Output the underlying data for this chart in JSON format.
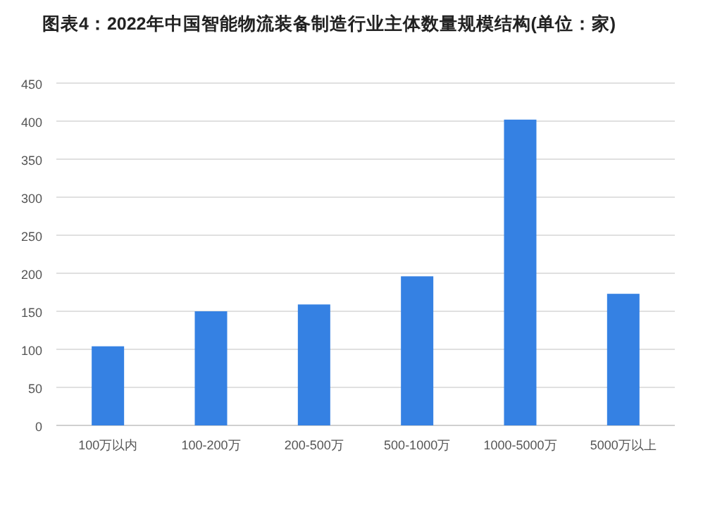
{
  "chart_data": {
    "type": "bar",
    "title": "图表4：2022年中国智能物流装备制造行业主体数量规模结构(单位：家)",
    "categories": [
      "100万以内",
      "100-200万",
      "200-500万",
      "500-1000万",
      "1000-5000万",
      "5000万以上"
    ],
    "values": [
      104,
      150,
      159,
      196,
      402,
      173
    ],
    "color": "#3581e3",
    "ylim": [
      0,
      450
    ],
    "yticks": [
      0,
      50,
      100,
      150,
      200,
      250,
      300,
      350,
      400,
      450
    ],
    "grid": "y"
  }
}
